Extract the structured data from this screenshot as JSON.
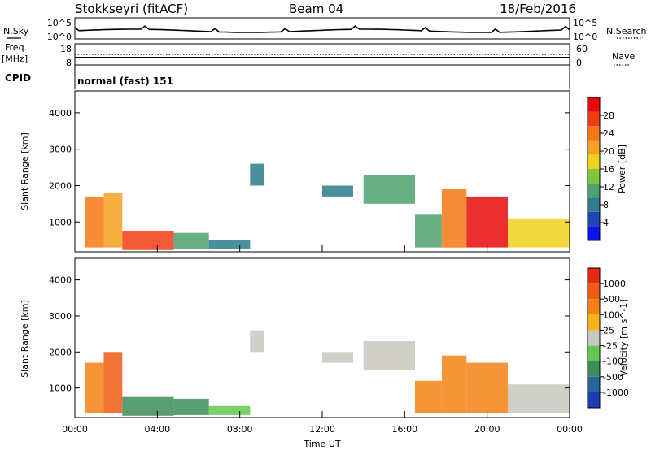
{
  "header": {
    "station": "Stokkseyri (fitACF)",
    "beam": "Beam 04",
    "date": "18/Feb/2016"
  },
  "top_panels": {
    "nsky_label": "N.Sky",
    "nsky_ticks": [
      "10^5",
      "10^0"
    ],
    "nsearch_label": "N.Search",
    "nsearch_ticks": [
      "10^5",
      "10^0"
    ],
    "freq_label": "Freq.",
    "freq_unit": "[MHz]",
    "freq_ticks": [
      "18",
      "8"
    ],
    "nave_label": "Nave",
    "nave_ticks": [
      "60",
      "0"
    ],
    "cpid_label": "CPID",
    "cpid_text": "normal (fast) 151"
  },
  "chart_data": [
    {
      "type": "heatmap",
      "name": "power",
      "ylabel": "Slant Range [km]",
      "xlabel": "",
      "ylim": [
        180,
        4600
      ],
      "yticks": [
        "1000",
        "2000",
        "3000",
        "4000"
      ],
      "xlim_hours": [
        0,
        24
      ],
      "xticks": [
        "00:00",
        "04:00",
        "08:00",
        "12:00",
        "16:00",
        "20:00",
        "00:00"
      ],
      "colorbar": {
        "label": "Power [dB]",
        "ticks": [
          "4",
          "8",
          "12",
          "16",
          "20",
          "24",
          "28"
        ],
        "colors": [
          "#0a14e6",
          "#1e46b4",
          "#2d7d8c",
          "#4ea06e",
          "#7dc83c",
          "#f0d21e",
          "#f5a01e",
          "#f57814",
          "#f03c14",
          "#e60a0a"
        ]
      },
      "cells": [
        [
          0.5,
          1.4,
          300,
          1700,
          24
        ],
        [
          1.4,
          2.3,
          300,
          1800,
          20
        ],
        [
          2.3,
          4.8,
          230,
          750,
          26
        ],
        [
          4.8,
          6.5,
          250,
          700,
          12
        ],
        [
          6.5,
          8.5,
          250,
          500,
          8
        ],
        [
          8.5,
          9.2,
          2000,
          2600,
          8
        ],
        [
          12.0,
          13.5,
          1700,
          2000,
          8
        ],
        [
          14.0,
          16.5,
          1500,
          2300,
          10
        ],
        [
          16.5,
          17.8,
          300,
          1200,
          12
        ],
        [
          17.8,
          19.0,
          300,
          1900,
          24
        ],
        [
          19.0,
          21.0,
          300,
          1700,
          28
        ],
        [
          21.0,
          24.0,
          300,
          1100,
          18
        ]
      ]
    },
    {
      "type": "heatmap",
      "name": "velocity",
      "ylabel": "Slant Range [km]",
      "xlabel": "Time UT",
      "ylim": [
        180,
        4600
      ],
      "yticks": [
        "1000",
        "2000",
        "3000",
        "4000"
      ],
      "xlim_hours": [
        0,
        24
      ],
      "xticks": [
        "00:00",
        "04:00",
        "08:00",
        "12:00",
        "16:00",
        "20:00",
        "00:00"
      ],
      "colorbar": {
        "label": "Velocity [m s^-1]",
        "ticks": [
          "1000",
          "500",
          "100",
          "25",
          "-25",
          "-100",
          "-500",
          "-1000"
        ],
        "colors": [
          "#1e3cb4",
          "#28649a",
          "#3c8c5a",
          "#64c850",
          "#c8c8c0",
          "#f5b414",
          "#f58214",
          "#f05a14",
          "#e62814"
        ]
      },
      "cells": [
        [
          0.5,
          1.4,
          300,
          1700,
          -300
        ],
        [
          1.4,
          2.3,
          300,
          2000,
          -600
        ],
        [
          2.3,
          4.8,
          230,
          750,
          300
        ],
        [
          4.8,
          6.5,
          250,
          700,
          150
        ],
        [
          6.5,
          8.5,
          250,
          500,
          50
        ],
        [
          8.5,
          9.2,
          2000,
          2600,
          0
        ],
        [
          12.0,
          13.5,
          1700,
          2000,
          0
        ],
        [
          14.0,
          16.5,
          1500,
          2300,
          0
        ],
        [
          16.5,
          17.8,
          300,
          1200,
          -200
        ],
        [
          17.8,
          19.0,
          300,
          1900,
          -200
        ],
        [
          19.0,
          21.0,
          300,
          1700,
          -150
        ],
        [
          21.0,
          24.0,
          300,
          1100,
          10
        ]
      ]
    }
  ]
}
